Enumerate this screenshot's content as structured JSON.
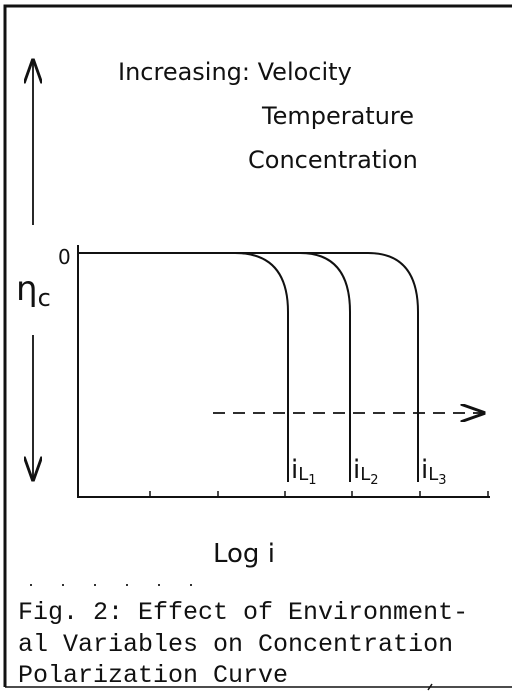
{
  "figure": {
    "annotation": [
      "Increasing: Velocity",
      "Temperature",
      "Concentration"
    ],
    "zero_label": "0",
    "y_axis_label": {
      "symbol": "η",
      "subscript": "c"
    },
    "curve_labels": [
      {
        "symbol": "i",
        "subscript": "L",
        "index": "1"
      },
      {
        "symbol": "i",
        "subscript": "L",
        "index": "2"
      },
      {
        "symbol": "i",
        "subscript": "L",
        "index": "3"
      }
    ],
    "x_axis_label": "Log i",
    "caption": [
      "Fig. 2:  Effect of Environment-",
      "al Variables on Concentration",
      "Polarization Curve"
    ]
  }
}
